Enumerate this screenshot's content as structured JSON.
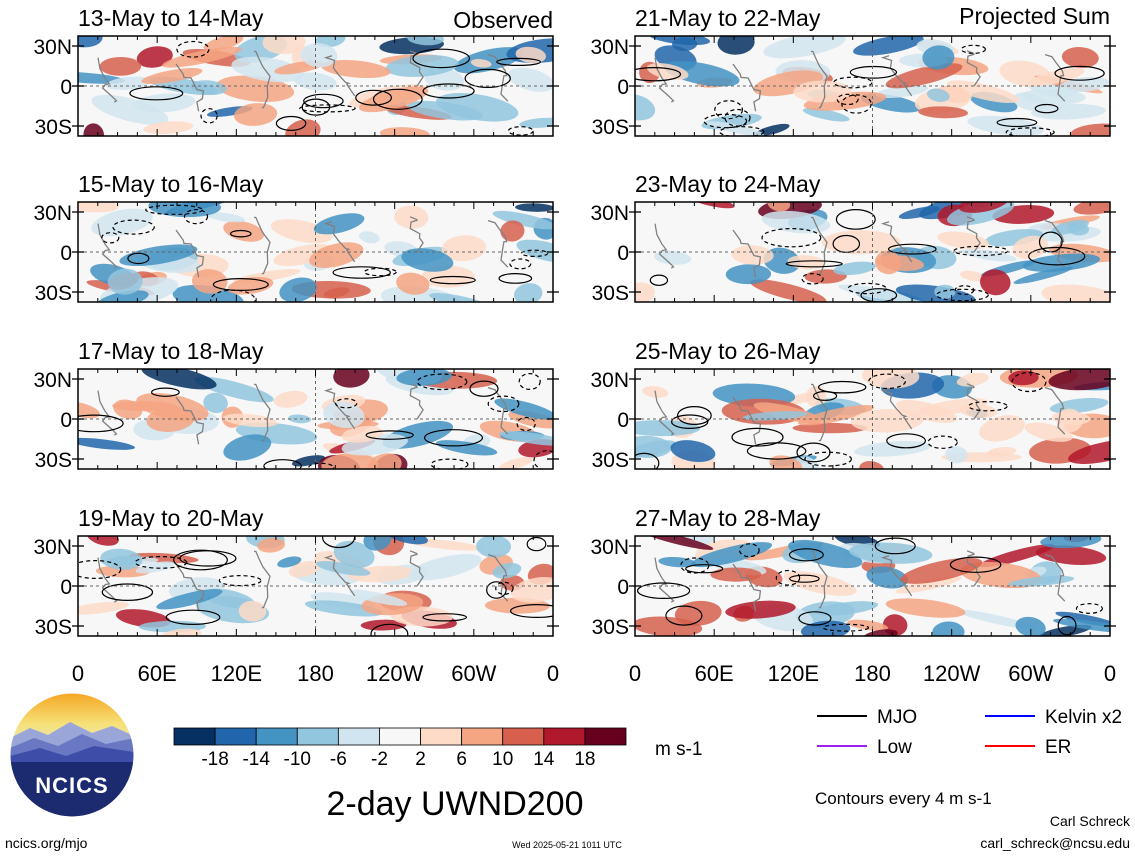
{
  "figure": {
    "title": "2-day UWND200",
    "unit_label": "m s-1",
    "contour_note": "Contours every 4 m s-1",
    "timestamp": "Wed 2025-05-21 1011 UTC",
    "website": "ncics.org/mjo",
    "author": "Carl Schreck",
    "email": "carl_schreck@ncsu.edu",
    "logo_text": "NCICS"
  },
  "columns": [
    {
      "label": "Observed"
    },
    {
      "label": "Projected Sum"
    }
  ],
  "legend": {
    "items": [
      {
        "label": "MJO",
        "color": "#000000"
      },
      {
        "label": "Kelvin x2",
        "color": "#0000ff"
      },
      {
        "label": "Low",
        "color": "#a020f0"
      },
      {
        "label": "ER",
        "color": "#ff0000"
      }
    ]
  },
  "colorbar": {
    "colors": [
      "#053061",
      "#2166ac",
      "#4393c3",
      "#92c5de",
      "#d1e5f0",
      "#f7f7f7",
      "#fddbc7",
      "#f4a582",
      "#d6604d",
      "#b2182b",
      "#67001f"
    ],
    "tick_labels": [
      "-18",
      "-14",
      "-10",
      "-6",
      "-2",
      "2",
      "6",
      "10",
      "14",
      "18"
    ]
  },
  "chart_data": {
    "type": "heatmap",
    "variable": "UWND200",
    "x_tick_labels": [
      "0",
      "60E",
      "120E",
      "180",
      "120W",
      "60W",
      "0"
    ],
    "y_tick_labels": [
      "30N",
      "0",
      "30S"
    ],
    "panels": [
      {
        "title": "13-May to 14-May",
        "column": "Observed"
      },
      {
        "title": "15-May to 16-May",
        "column": "Observed"
      },
      {
        "title": "17-May to 18-May",
        "column": "Observed"
      },
      {
        "title": "19-May to 20-May",
        "column": "Observed"
      },
      {
        "title": "21-May to 22-May",
        "column": "Projected Sum"
      },
      {
        "title": "23-May to 24-May",
        "column": "Projected Sum"
      },
      {
        "title": "25-May to 26-May",
        "column": "Projected Sum"
      },
      {
        "title": "27-May to 28-May",
        "column": "Projected Sum"
      }
    ]
  }
}
